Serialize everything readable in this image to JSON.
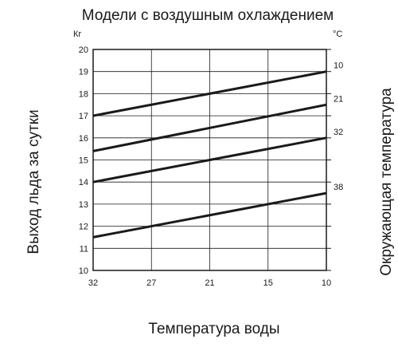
{
  "chart_data": {
    "type": "line",
    "title": "Модели с воздушным охлаждением",
    "xlabel": "Температура воды",
    "ylabel": "Выход льда за сутки",
    "y2label": "Окружающая температура",
    "y_unit": "Кг",
    "series_unit": "°C",
    "x": [
      32,
      27,
      21,
      15,
      10
    ],
    "x_reversed": true,
    "ylim": [
      10,
      20
    ],
    "yticks": [
      10,
      11,
      12,
      13,
      14,
      15,
      16,
      17,
      18,
      19,
      20
    ],
    "grid": true,
    "series": [
      {
        "name": "10",
        "points": [
          [
            32,
            17.0
          ],
          [
            10,
            19.0
          ]
        ]
      },
      {
        "name": "21",
        "points": [
          [
            32,
            15.4
          ],
          [
            10,
            17.5
          ]
        ]
      },
      {
        "name": "32",
        "points": [
          [
            32,
            14.0
          ],
          [
            10,
            16.0
          ]
        ]
      },
      {
        "name": "38",
        "points": [
          [
            32,
            11.5
          ],
          [
            10,
            13.5
          ]
        ]
      }
    ]
  }
}
